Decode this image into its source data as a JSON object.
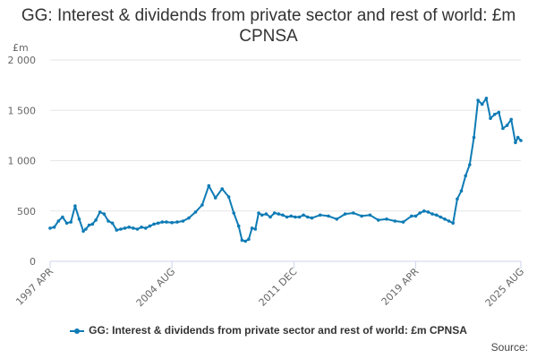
{
  "chart_data": {
    "type": "line",
    "title": "GG: Interest & dividends from private sector and rest of world: £m CPNSA",
    "ylabel": "£m",
    "ylim": [
      0,
      2000
    ],
    "y_ticks": [
      "0",
      "500",
      "1 000",
      "1 500",
      "2 000"
    ],
    "y_tick_values": [
      0,
      500,
      1000,
      1500,
      2000
    ],
    "x_ticks": [
      "1997 APR",
      "2004 AUG",
      "2011 DEC",
      "2019 APR",
      "2025 AUG"
    ],
    "x_tick_positions": [
      1997.25,
      2004.58,
      2011.92,
      2019.25,
      2025.58
    ],
    "grid": true,
    "legend_position": "bottom",
    "series": [
      {
        "name": "GG: Interest & dividends from private sector and rest of world: £m CPNSA",
        "color": "#0e7bb5",
        "x": [
          1997.25,
          1997.5,
          1997.75,
          1998.0,
          1998.25,
          1998.5,
          1998.75,
          1999.0,
          1999.25,
          1999.4,
          1999.6,
          1999.8,
          2000.0,
          2000.25,
          2000.5,
          2000.75,
          2001.0,
          2001.25,
          2001.5,
          2001.75,
          2002.0,
          2002.25,
          2002.5,
          2002.75,
          2003.0,
          2003.25,
          2003.5,
          2003.75,
          2004.0,
          2004.25,
          2004.58,
          2004.9,
          2005.25,
          2005.6,
          2006.0,
          2006.4,
          2006.8,
          2007.2,
          2007.6,
          2008.0,
          2008.3,
          2008.6,
          2008.8,
          2009.0,
          2009.2,
          2009.4,
          2009.6,
          2009.8,
          2010.0,
          2010.25,
          2010.5,
          2010.75,
          2011.0,
          2011.25,
          2011.5,
          2011.75,
          2012.0,
          2012.25,
          2012.5,
          2012.75,
          2013.0,
          2013.5,
          2014.0,
          2014.5,
          2015.0,
          2015.5,
          2016.0,
          2016.5,
          2017.0,
          2017.5,
          2018.0,
          2018.5,
          2019.0,
          2019.25,
          2019.5,
          2019.75,
          2020.0,
          2020.25,
          2020.5,
          2020.75,
          2021.0,
          2021.25,
          2021.5,
          2021.75,
          2022.0,
          2022.25,
          2022.5,
          2022.75,
          2023.0,
          2023.25,
          2023.5,
          2023.75,
          2024.0,
          2024.25,
          2024.5,
          2024.75,
          2025.0,
          2025.25,
          2025.4,
          2025.58
        ],
        "values": [
          330,
          340,
          400,
          440,
          380,
          390,
          550,
          420,
          300,
          320,
          360,
          370,
          410,
          490,
          470,
          400,
          380,
          310,
          320,
          330,
          340,
          330,
          320,
          340,
          330,
          350,
          370,
          380,
          390,
          390,
          385,
          390,
          400,
          430,
          490,
          560,
          750,
          630,
          720,
          640,
          480,
          350,
          210,
          200,
          220,
          330,
          320,
          480,
          460,
          470,
          440,
          480,
          470,
          460,
          440,
          450,
          440,
          440,
          460,
          440,
          430,
          460,
          450,
          420,
          470,
          480,
          450,
          460,
          410,
          420,
          400,
          390,
          450,
          450,
          480,
          500,
          490,
          470,
          460,
          440,
          420,
          400,
          380,
          620,
          700,
          850,
          960,
          1230,
          1600,
          1560,
          1620,
          1420,
          1460,
          1480,
          1320,
          1350,
          1410,
          1180,
          1230,
          1200
        ]
      }
    ]
  },
  "source_label": "Source:"
}
